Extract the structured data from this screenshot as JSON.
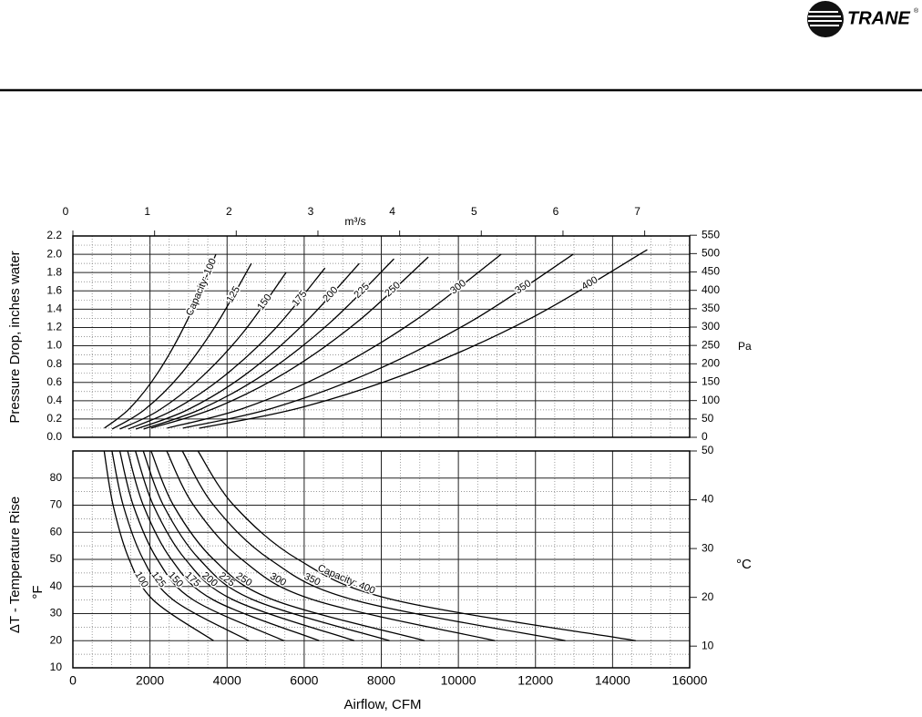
{
  "header": {
    "logo": "TRANE",
    "logo_mark": "®"
  },
  "chart_data": [
    {
      "type": "line",
      "ylabel": "Pressure Drop, inches water",
      "y2label": "Pa",
      "x2label": "m³/s",
      "xlim": [
        0,
        16000
      ],
      "ylim": [
        0,
        2.2
      ],
      "yticks": [
        {
          "value": 0,
          "label": "0.0"
        },
        0.2,
        0.4,
        0.6,
        0.8,
        {
          "value": 1,
          "label": "1.0"
        },
        1.2,
        1.4,
        1.6,
        1.8,
        {
          "value": 2,
          "label": "2.0"
        },
        2.2
      ],
      "y2lim": [
        0,
        548
      ],
      "y2ticks": [
        0,
        50,
        100,
        150,
        200,
        250,
        300,
        350,
        400,
        450,
        500,
        550
      ],
      "x2lim": [
        0,
        7.551
      ],
      "x2ticks": [
        0,
        1,
        2,
        3,
        4,
        5,
        6,
        7
      ],
      "grid": true,
      "color": "#000000",
      "series": [
        {
          "name": "Capacity: 100",
          "x": [
            816,
            1484,
            2226,
            2968,
            3710
          ],
          "values": [
            0.1,
            0.32,
            0.72,
            1.28,
            2.0
          ]
        },
        {
          "name": "125",
          "x": [
            1019,
            1852,
            2778,
            3704,
            4630
          ],
          "values": [
            0.09,
            0.3,
            0.68,
            1.22,
            1.9
          ]
        },
        {
          "name": "150",
          "x": [
            1217,
            2212,
            3318,
            4424,
            5530
          ],
          "values": [
            0.09,
            0.29,
            0.65,
            1.15,
            1.8
          ]
        },
        {
          "name": "175",
          "x": [
            1439,
            2616,
            3924,
            5232,
            6540
          ],
          "values": [
            0.09,
            0.3,
            0.67,
            1.18,
            1.85
          ]
        },
        {
          "name": "200",
          "x": [
            1635,
            2972,
            4458,
            5944,
            7430
          ],
          "values": [
            0.09,
            0.3,
            0.68,
            1.22,
            1.9
          ]
        },
        {
          "name": "225",
          "x": [
            1833,
            3332,
            4998,
            6664,
            8330
          ],
          "values": [
            0.09,
            0.31,
            0.7,
            1.25,
            1.95
          ]
        },
        {
          "name": "250",
          "x": [
            2028,
            3688,
            5532,
            7376,
            9220
          ],
          "values": [
            0.1,
            0.32,
            0.71,
            1.26,
            1.97
          ]
        },
        {
          "name": "300",
          "x": [
            2444,
            4444,
            6666,
            8888,
            11110
          ],
          "values": [
            0.1,
            0.32,
            0.72,
            1.28,
            2.0
          ]
        },
        {
          "name": "350",
          "x": [
            2856,
            5192,
            7788,
            10384,
            12980
          ],
          "values": [
            0.1,
            0.32,
            0.72,
            1.28,
            2.0
          ]
        },
        {
          "name": "400",
          "x": [
            3278,
            5960,
            8940,
            11920,
            14900
          ],
          "values": [
            0.1,
            0.33,
            0.74,
            1.31,
            2.05
          ]
        }
      ]
    },
    {
      "type": "line",
      "xlabel": "Airflow, CFM",
      "ylabel": "ΔT - Temperature Rise",
      "yunit": "°F",
      "y2label": "°C",
      "xlim": [
        0,
        16000
      ],
      "xticks": [
        0,
        2000,
        4000,
        6000,
        8000,
        10000,
        12000,
        14000,
        16000
      ],
      "ylim": [
        10,
        90
      ],
      "yticks": [
        10,
        20,
        30,
        40,
        50,
        60,
        70,
        80
      ],
      "y2lim": [
        5.556,
        50
      ],
      "y2ticks": [
        10,
        20,
        30,
        40,
        50
      ],
      "grid": true,
      "color": "#000000",
      "series": [
        {
          "name": "100",
          "x": [
            811,
            1043,
            1460,
            2086,
            3650
          ],
          "values": [
            90,
            70,
            50,
            35,
            20
          ]
        },
        {
          "name": "125",
          "x": [
            1014,
            1304,
            1825,
            2607,
            4563
          ],
          "values": [
            90,
            70,
            50,
            35,
            20
          ]
        },
        {
          "name": "150",
          "x": [
            1217,
            1564,
            2190,
            3129,
            5475
          ],
          "values": [
            90,
            70,
            50,
            35,
            20
          ]
        },
        {
          "name": "175",
          "x": [
            1419,
            1825,
            2555,
            3650,
            6388
          ],
          "values": [
            90,
            70,
            50,
            35,
            20
          ]
        },
        {
          "name": "200",
          "x": [
            1622,
            2086,
            2920,
            4171,
            7300
          ],
          "values": [
            90,
            70,
            50,
            35,
            20
          ]
        },
        {
          "name": "225",
          "x": [
            1825,
            2346,
            3285,
            4693,
            8213
          ],
          "values": [
            90,
            70,
            50,
            35,
            20
          ]
        },
        {
          "name": "250",
          "x": [
            2028,
            2607,
            3650,
            5214,
            9125
          ],
          "values": [
            90,
            70,
            50,
            35,
            20
          ]
        },
        {
          "name": "300",
          "x": [
            2433,
            3129,
            4380,
            6257,
            10950
          ],
          "values": [
            90,
            70,
            50,
            35,
            20
          ]
        },
        {
          "name": "350",
          "x": [
            2839,
            3650,
            5110,
            7300,
            12775
          ],
          "values": [
            90,
            70,
            50,
            35,
            20
          ]
        },
        {
          "name": "Capacity: 400",
          "x": [
            3244,
            4171,
            5840,
            8343,
            14600
          ],
          "values": [
            90,
            70,
            50,
            35,
            20
          ]
        }
      ]
    }
  ]
}
